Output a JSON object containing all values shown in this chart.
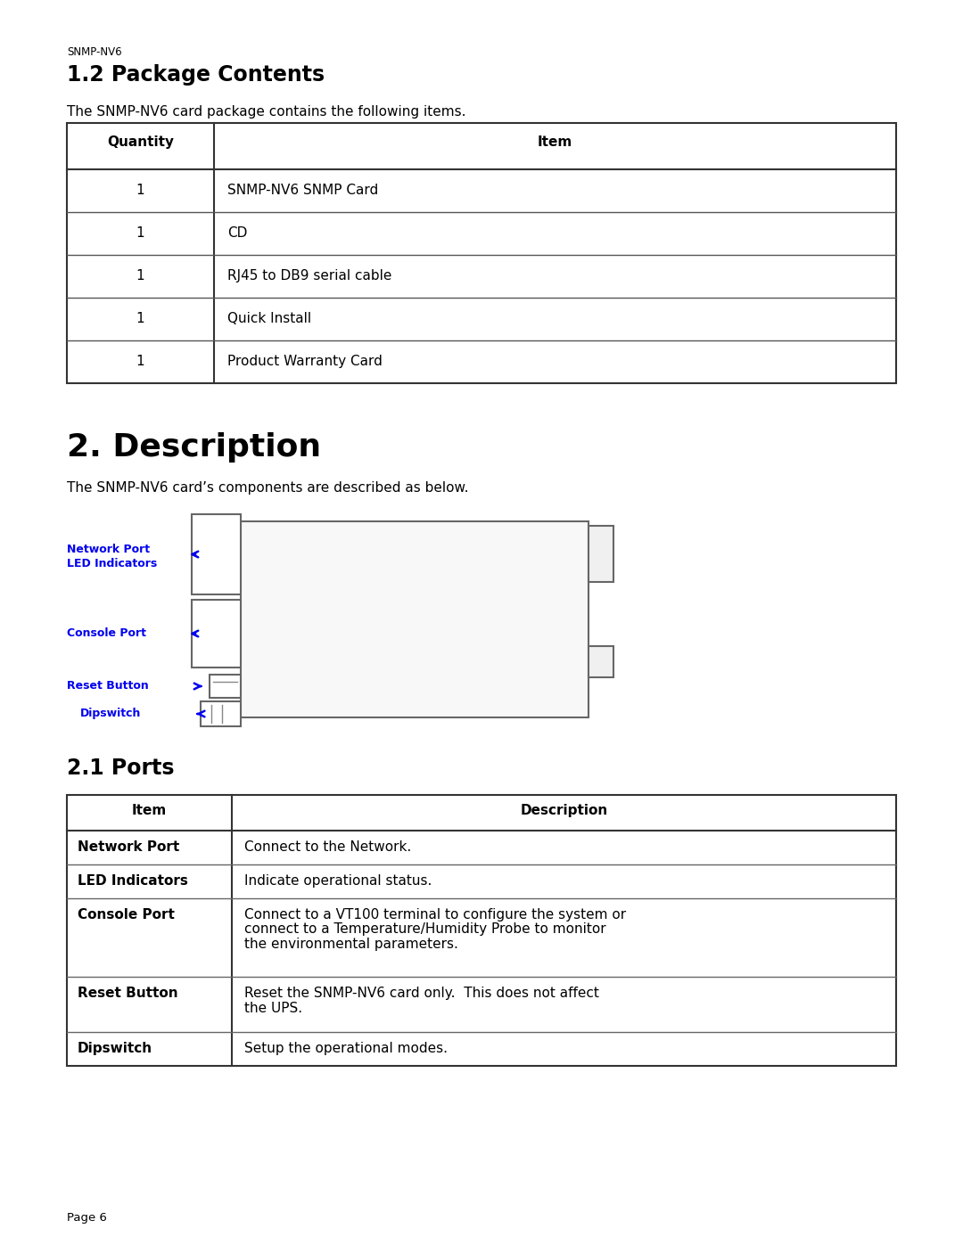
{
  "bg_color": "#ffffff",
  "section1_label": "SNMP-NV6",
  "section1_title": "1.2 Package Contents",
  "section1_intro": "The SNMP-NV6 card package contains the following items.",
  "pkg_table_headers": [
    "Quantity",
    "Item"
  ],
  "pkg_table_rows": [
    [
      "1",
      "SNMP-NV6 SNMP Card"
    ],
    [
      "1",
      "CD"
    ],
    [
      "1",
      "RJ45 to DB9 serial cable"
    ],
    [
      "1",
      "Quick Install"
    ],
    [
      "1",
      "Product Warranty Card"
    ]
  ],
  "section2_title": "2. Description",
  "section2_intro": "The SNMP-NV6 card’s components are described as below.",
  "label_color": "#0000ee",
  "section3_title": "2.1 Ports",
  "ports_table_headers": [
    "Item",
    "Description"
  ],
  "ports_table_rows": [
    [
      "Network Port",
      "Connect to the Network."
    ],
    [
      "LED Indicators",
      "Indicate operational status."
    ],
    [
      "Console Port",
      "Connect to a VT100 terminal to configure the system or\nconnect to a Temperature/Humidity Probe to monitor\nthe environmental parameters."
    ],
    [
      "Reset Button",
      "Reset the SNMP-NV6 card only.  This does not affect\nthe UPS."
    ],
    [
      "Dipswitch",
      "Setup the operational modes."
    ]
  ],
  "page_footer": "Page 6"
}
